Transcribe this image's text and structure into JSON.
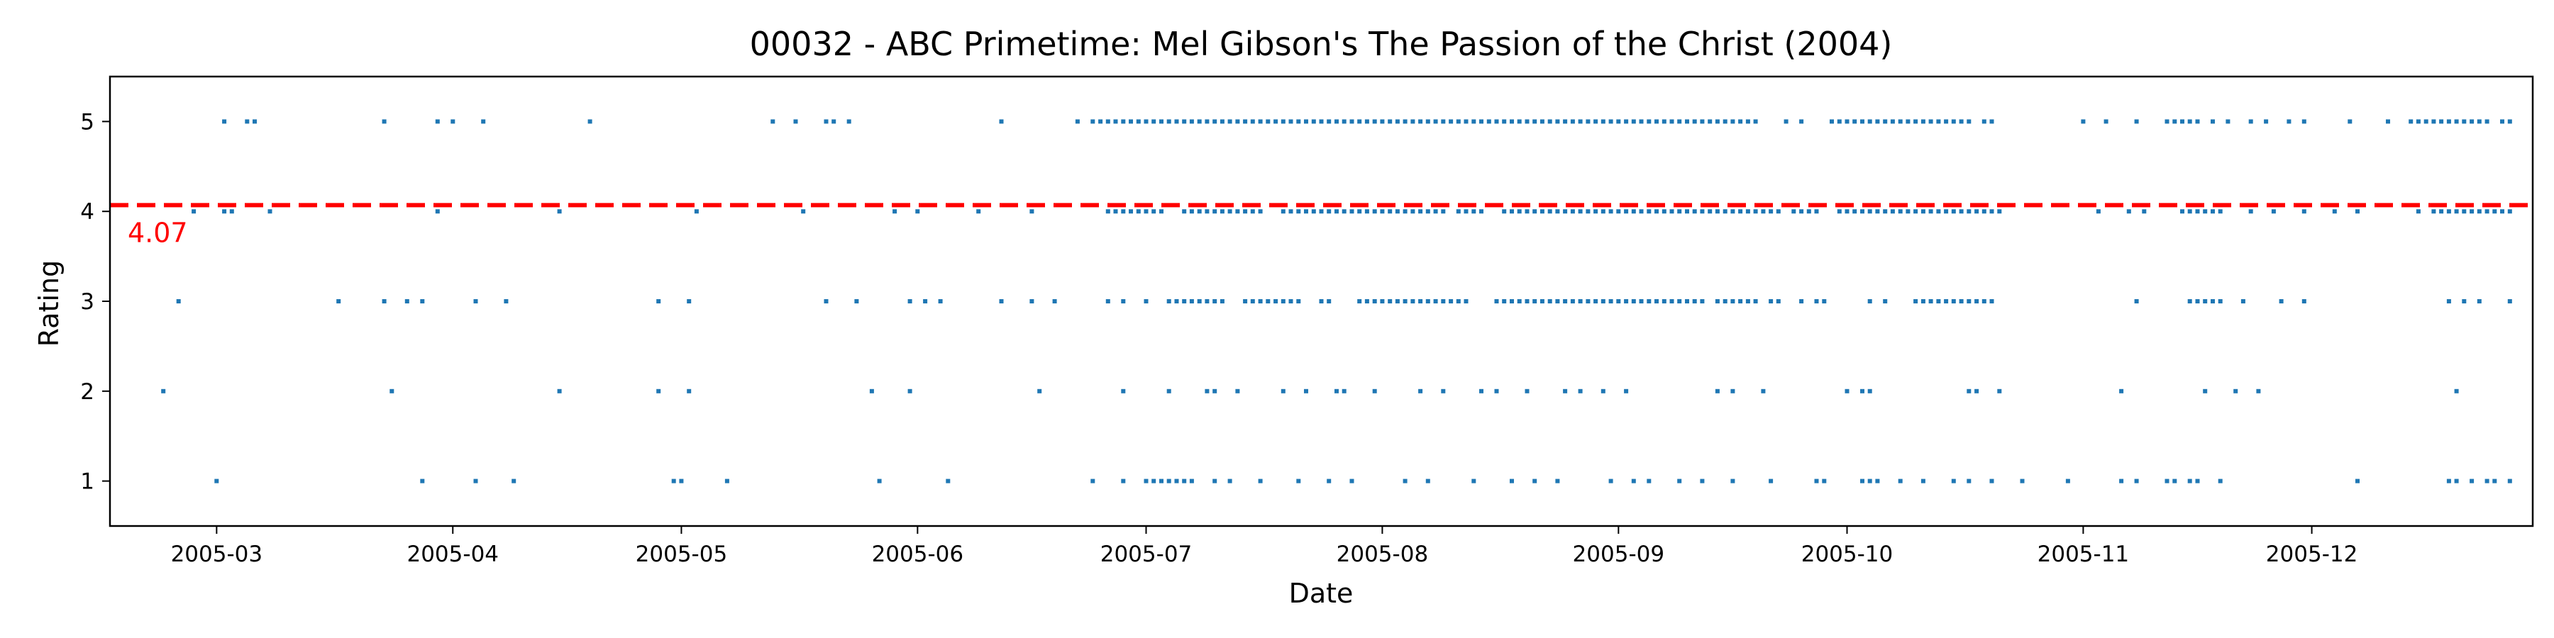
{
  "chart_data": {
    "type": "scatter",
    "title": "00032 - ABC Primetime: Mel Gibson's The Passion of the Christ (2004)",
    "xlabel": "Date",
    "ylabel": "Rating",
    "xlim": [
      "2005-02-15",
      "2005-12-30"
    ],
    "ylim": [
      0.5,
      5.5
    ],
    "x_ticks": [
      "2005-03",
      "2005-04",
      "2005-05",
      "2005-06",
      "2005-07",
      "2005-08",
      "2005-09",
      "2005-10",
      "2005-11",
      "2005-12"
    ],
    "y_ticks": [
      "1",
      "2",
      "3",
      "4",
      "5"
    ],
    "grid": false,
    "point_color": "#1f77b4",
    "mean_line": {
      "value": 4.07,
      "label": "4.07",
      "color": "#ff0000",
      "style": "dashed"
    },
    "points": {
      "1": [
        [
          "2005-03-01"
        ],
        [
          "2005-03-28"
        ],
        [
          "2005-04-04"
        ],
        [
          "2005-04-09"
        ],
        [
          "2005-04-30",
          "2005-05-01"
        ],
        [
          "2005-05-07"
        ],
        [
          "2005-05-27"
        ],
        [
          "2005-06-05"
        ],
        [
          "2005-06-24"
        ],
        [
          "2005-06-28"
        ],
        [
          "2005-07-01",
          "2005-07-07",
          "every 1 day"
        ],
        [
          "2005-07-10",
          "2005-07-12"
        ],
        [
          "2005-07-16"
        ],
        [
          "2005-07-21",
          "2005-07-25"
        ],
        [
          "2005-07-28",
          "2005-08-04"
        ],
        [
          "2005-08-07",
          "2005-08-13"
        ],
        [
          "2005-08-18"
        ],
        [
          "2005-08-21"
        ],
        [
          "2005-08-24",
          "2005-08-31"
        ],
        [
          "2005-09-03",
          "2005-09-05"
        ],
        [
          "2005-09-09",
          "2005-09-12"
        ],
        [
          "2005-09-16"
        ],
        [
          "2005-09-21"
        ],
        [
          "2005-09-27",
          "2005-09-28"
        ],
        [
          "2005-10-03"
        ],
        [
          "2005-10-04",
          "2005-10-05"
        ],
        [
          "2005-10-08"
        ],
        [
          "2005-10-11"
        ],
        [
          "2005-10-15",
          "2005-10-17"
        ],
        [
          "2005-10-20"
        ],
        [
          "2005-10-24"
        ],
        [
          "2005-10-30"
        ],
        [
          "2005-11-06",
          "2005-11-08"
        ],
        [
          "2005-11-12",
          "2005-11-13"
        ],
        [
          "2005-11-15",
          "2005-11-16"
        ],
        [
          "2005-11-19"
        ],
        [
          "2005-12-07"
        ],
        [
          "2005-12-19",
          "2005-12-20"
        ],
        [
          "2005-12-22"
        ],
        [
          "2005-12-24",
          "2005-12-25"
        ],
        [
          "2005-12-27"
        ]
      ],
      "2": [
        [
          "2005-02-22"
        ],
        [
          "2005-03-24"
        ],
        [
          "2005-04-15"
        ],
        [
          "2005-04-28"
        ],
        [
          "2005-05-02"
        ],
        [
          "2005-05-26"
        ],
        [
          "2005-05-31"
        ],
        [
          "2005-06-17"
        ],
        [
          "2005-06-28"
        ],
        [
          "2005-07-04"
        ],
        [
          "2005-07-09",
          "2005-07-10"
        ],
        [
          "2005-07-13"
        ],
        [
          "2005-07-19"
        ],
        [
          "2005-07-22"
        ],
        [
          "2005-07-26",
          "2005-07-27"
        ],
        [
          "2005-07-31",
          "2005-08-06"
        ],
        [
          "2005-08-09"
        ],
        [
          "2005-08-14",
          "2005-08-16"
        ],
        [
          "2005-08-20"
        ],
        [
          "2005-08-25",
          "2005-08-27"
        ],
        [
          "2005-08-30"
        ],
        [
          "2005-09-02"
        ],
        [
          "2005-09-14",
          "2005-09-16"
        ],
        [
          "2005-09-20"
        ],
        [
          "2005-10-01"
        ],
        [
          "2005-10-03"
        ],
        [
          "2005-10-04"
        ],
        [
          "2005-10-17"
        ],
        [
          "2005-10-18"
        ],
        [
          "2005-10-21"
        ],
        [
          "2005-11-06"
        ],
        [
          "2005-11-17"
        ],
        [
          "2005-11-21"
        ],
        [
          "2005-11-24"
        ],
        [
          "2005-12-20"
        ]
      ],
      "3": [
        [
          "2005-02-24"
        ],
        [
          "2005-03-17"
        ],
        [
          "2005-03-23"
        ],
        [
          "2005-03-26"
        ],
        [
          "2005-03-28"
        ],
        [
          "2005-04-04"
        ],
        [
          "2005-04-08"
        ],
        [
          "2005-04-28"
        ],
        [
          "2005-05-02"
        ],
        [
          "2005-05-20"
        ],
        [
          "2005-05-24"
        ],
        [
          "2005-05-31"
        ],
        [
          "2005-06-02"
        ],
        [
          "2005-06-04"
        ],
        [
          "2005-06-12"
        ],
        [
          "2005-06-16"
        ],
        [
          "2005-06-19"
        ],
        [
          "2005-06-26",
          "2005-06-28"
        ],
        [
          "2005-07-01"
        ],
        [
          "2005-07-04",
          "2005-07-11",
          "every 1 day"
        ],
        [
          "2005-07-14",
          "2005-07-21",
          "every 1 day"
        ],
        [
          "2005-07-24",
          "2005-07-25"
        ],
        [
          "2005-07-29",
          "2005-08-12",
          "every 1 day"
        ],
        [
          "2005-08-16",
          "2005-09-12",
          "every 1 day"
        ],
        [
          "2005-09-14",
          "2005-09-19",
          "every 1 day"
        ],
        [
          "2005-09-21",
          "2005-09-22"
        ],
        [
          "2005-09-25"
        ],
        [
          "2005-09-27",
          "2005-09-28"
        ],
        [
          "2005-10-04",
          "2005-10-06"
        ],
        [
          "2005-10-10",
          "2005-10-19",
          "every 1 day"
        ],
        [
          "2005-10-20"
        ],
        [
          "2005-11-08"
        ],
        [
          "2005-11-15",
          "2005-11-19",
          "every 1 day"
        ],
        [
          "2005-11-22"
        ],
        [
          "2005-11-27"
        ],
        [
          "2005-11-30"
        ],
        [
          "2005-12-19",
          "2005-12-21"
        ],
        [
          "2005-12-23"
        ],
        [
          "2005-12-27"
        ]
      ],
      "4": [
        [
          "2005-02-26"
        ],
        [
          "2005-03-02"
        ],
        [
          "2005-03-03"
        ],
        [
          "2005-03-08"
        ],
        [
          "2005-03-30"
        ],
        [
          "2005-04-15"
        ],
        [
          "2005-05-03"
        ],
        [
          "2005-05-17"
        ],
        [
          "2005-05-29"
        ],
        [
          "2005-06-01"
        ],
        [
          "2005-06-09"
        ],
        [
          "2005-06-16"
        ],
        [
          "2005-06-26",
          "2005-07-03",
          "every 1 day"
        ],
        [
          "2005-07-06",
          "2005-07-16",
          "every 1 day"
        ],
        [
          "2005-07-19",
          "2005-08-09",
          "every 1 day"
        ],
        [
          "2005-08-11",
          "2005-08-14",
          "every 1 day"
        ],
        [
          "2005-08-17",
          "2005-09-22",
          "every 1 day"
        ],
        [
          "2005-09-24",
          "2005-09-27",
          "every 1 day"
        ],
        [
          "2005-09-30",
          "2005-10-21",
          "every 1 day"
        ],
        [
          "2005-11-03"
        ],
        [
          "2005-11-07"
        ],
        [
          "2005-11-09"
        ],
        [
          "2005-11-14",
          "2005-11-19",
          "every 1 day"
        ],
        [
          "2005-11-23"
        ],
        [
          "2005-11-26"
        ],
        [
          "2005-11-30"
        ],
        [
          "2005-12-04"
        ],
        [
          "2005-12-07"
        ],
        [
          "2005-12-15"
        ],
        [
          "2005-12-17",
          "2005-12-27",
          "every 1 day"
        ]
      ],
      "5": [
        [
          "2005-03-02"
        ],
        [
          "2005-03-05"
        ],
        [
          "2005-03-06"
        ],
        [
          "2005-03-23"
        ],
        [
          "2005-03-30",
          "2005-04-01"
        ],
        [
          "2005-04-05"
        ],
        [
          "2005-04-19"
        ],
        [
          "2005-05-13"
        ],
        [
          "2005-05-16"
        ],
        [
          "2005-05-20",
          "2005-05-21"
        ],
        [
          "2005-05-23"
        ],
        [
          "2005-06-12"
        ],
        [
          "2005-06-22"
        ],
        [
          "2005-06-24",
          "2005-09-19",
          "every 1 day"
        ],
        [
          "2005-09-23",
          "2005-09-25"
        ],
        [
          "2005-09-29",
          "2005-10-17",
          "every 1 day"
        ],
        [
          "2005-10-19",
          "2005-10-20"
        ],
        [
          "2005-11-01"
        ],
        [
          "2005-11-04"
        ],
        [
          "2005-11-08"
        ],
        [
          "2005-11-12",
          "2005-11-16",
          "every 1 day"
        ],
        [
          "2005-11-18",
          "2005-11-20"
        ],
        [
          "2005-11-23"
        ],
        [
          "2005-11-25"
        ],
        [
          "2005-11-28"
        ],
        [
          "2005-11-30"
        ],
        [
          "2005-12-06"
        ],
        [
          "2005-12-11"
        ],
        [
          "2005-12-14",
          "2005-12-24",
          "every 1 day"
        ],
        [
          "2005-12-26",
          "2005-12-27"
        ]
      ]
    }
  }
}
